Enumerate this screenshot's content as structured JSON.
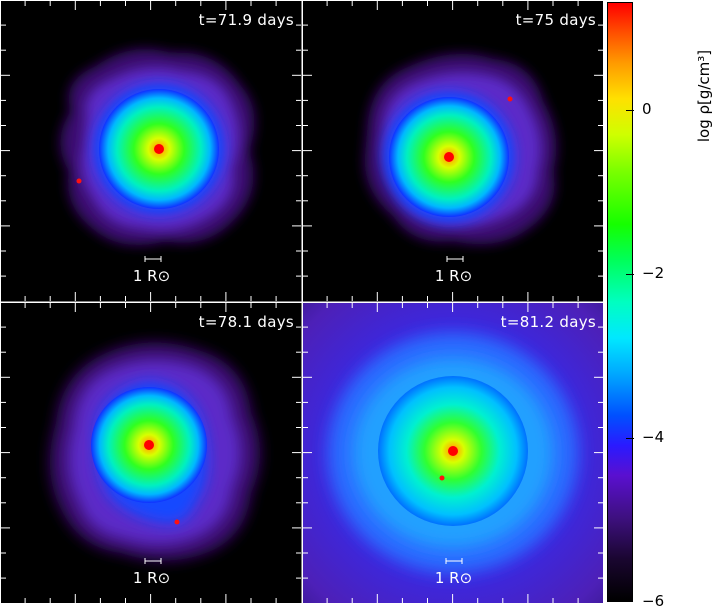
{
  "panels": [
    {
      "time": "t=71.9 days",
      "scale": "1 R⊙"
    },
    {
      "time": "t=75 days",
      "scale": "1 R⊙"
    },
    {
      "time": "t=78.1 days",
      "scale": "1 R⊙"
    },
    {
      "time": "t=81.2 days",
      "scale": "1 R⊙"
    }
  ],
  "colorbar": {
    "title": "log ρ[g/cm³]",
    "tick_labels": [
      "0",
      "−2",
      "−4",
      "−6"
    ]
  },
  "colors": {
    "core": "#ff0000",
    "envelope_green": "#22ff00",
    "envelope_blue": "#0060ff",
    "halo_purple": "#5a20c0",
    "background": "#000000"
  }
}
